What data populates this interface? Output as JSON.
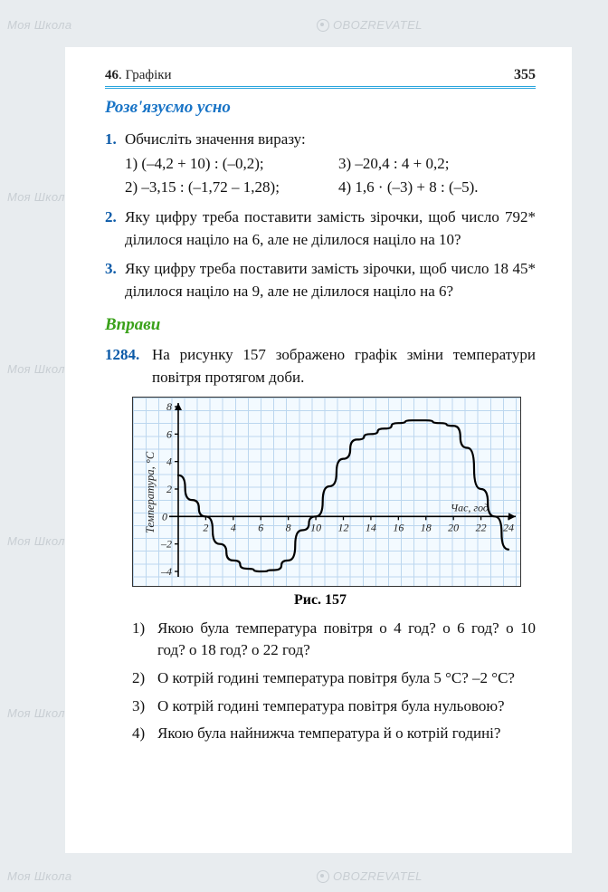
{
  "header": {
    "section_num": "46",
    "section_title": ". Графіки",
    "page_number": "355"
  },
  "heading_oral": "Розв'язуємо усно",
  "problems": [
    {
      "num": "1.",
      "text": "Обчисліть значення виразу:",
      "parts": [
        "1) (–4,2 + 10) : (–0,2);",
        "3) –20,4 : 4 + 0,2;",
        "2) –3,15 : (–1,72 – 1,28);",
        "4) 1,6 · (–3) + 8 : (–5)."
      ]
    },
    {
      "num": "2.",
      "text": "Яку цифру треба поставити замість зірочки, щоб число 792* ділилося націло на 6, але не ділилося націло на 10?"
    },
    {
      "num": "3.",
      "text": "Яку цифру треба поставити замість зірочки, щоб число 18 45* ділилося націло на 9, але не ділилося націло на 6?"
    }
  ],
  "heading_ex": "Вправи",
  "ex1284": {
    "num": "1284.",
    "text": "На рисунку 157 зображено графік зміни температури повітря протягом доби."
  },
  "chart": {
    "type": "line",
    "x_range": [
      0,
      24
    ],
    "y_range": [
      -4,
      8
    ],
    "x_ticks": [
      0,
      2,
      4,
      6,
      8,
      10,
      12,
      14,
      16,
      18,
      20,
      22,
      24
    ],
    "y_ticks": [
      -4,
      -2,
      0,
      2,
      4,
      6,
      8
    ],
    "x_label": "Час, год",
    "y_label": "Температура, °С",
    "grid_color": "#bcd7ef",
    "background_color": "#f3faff",
    "axis_color": "#000000",
    "curve_color": "#000000",
    "curve_width": 2.2,
    "points": [
      [
        0,
        3
      ],
      [
        1,
        1.2
      ],
      [
        2,
        0
      ],
      [
        3,
        -2
      ],
      [
        4,
        -3.2
      ],
      [
        5,
        -3.8
      ],
      [
        6,
        -4
      ],
      [
        7,
        -3.9
      ],
      [
        8,
        -3.2
      ],
      [
        9,
        -1
      ],
      [
        10,
        0
      ],
      [
        11,
        2.2
      ],
      [
        12,
        4.2
      ],
      [
        13,
        5.6
      ],
      [
        14,
        6
      ],
      [
        15,
        6.4
      ],
      [
        16,
        6.8
      ],
      [
        17,
        7
      ],
      [
        18,
        7
      ],
      [
        19,
        6.8
      ],
      [
        20,
        6.6
      ],
      [
        21,
        5
      ],
      [
        22,
        2
      ],
      [
        23,
        0
      ],
      [
        24,
        -2.4
      ]
    ]
  },
  "fig_caption": "Рис. 157",
  "questions": [
    {
      "n": "1)",
      "t": "Якою була температура повітря о 4 год? о 6 год? о 10 год? о 18 год? о 22 год?"
    },
    {
      "n": "2)",
      "t": "О котрій годині температура повітря була 5 °С? –2 °С?"
    },
    {
      "n": "3)",
      "t": "О котрій годині температура повітря була нульовою?"
    },
    {
      "n": "4)",
      "t": "Якою була найнижча температура й о котрій годині?"
    }
  ],
  "watermarks": {
    "left": "Моя Школа",
    "right": "OBOZREVATEL"
  }
}
